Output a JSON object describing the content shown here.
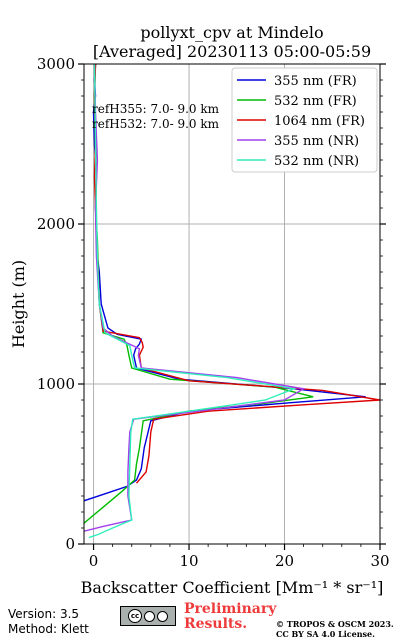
{
  "chart_data": {
    "type": "line",
    "title": [
      "pollyxt_cpv at Mindelo",
      "[Averaged] 20230113 05:00-05:59"
    ],
    "xlabel": "Backscatter Coefficient [Mm⁻¹ * sr⁻¹]",
    "ylabel": "Height (m)",
    "xlim": [
      -1,
      30
    ],
    "ylim": [
      0,
      3000
    ],
    "xticks": [
      0,
      10,
      20,
      30
    ],
    "yticks": [
      0,
      1000,
      2000,
      3000
    ],
    "grid": true,
    "legend_position": "top-right",
    "annotations": [
      "refH355:  7.0- 9.0 km",
      "refH532:  7.0- 9.0 km"
    ],
    "series": [
      {
        "name": "355 nm (FR)",
        "color": "#0000dd",
        "x": [
          -1.0,
          1.0,
          3.5,
          4.5,
          5.0,
          5.3,
          6.0,
          10,
          20,
          28.5,
          21,
          9,
          4.5,
          4.2,
          4.4,
          4.8,
          5.0,
          2.5,
          1.5,
          0.8,
          0.6,
          0.4,
          0.3,
          0.2,
          0.3,
          0.1,
          0.0,
          0.2,
          0.1,
          0.2
        ],
        "y": [
          270,
          310,
          360,
          400,
          470,
          600,
          770,
          830,
          880,
          920,
          970,
          1030,
          1100,
          1180,
          1220,
          1250,
          1280,
          1310,
          1350,
          1500,
          1700,
          1800,
          2000,
          2100,
          2300,
          2500,
          2700,
          2800,
          2900,
          3000
        ]
      },
      {
        "name": "532 nm (FR)",
        "color": "#00bb00",
        "x": [
          -1.0,
          1.0,
          3.0,
          4.3,
          4.5,
          4.8,
          5.2,
          10,
          18,
          23,
          19,
          8,
          4.0,
          3.7,
          3.5,
          3.2,
          1.0,
          0.6,
          0.5,
          0.4,
          0.2,
          0.3,
          0.2,
          0.1,
          0.2
        ],
        "y": [
          130,
          230,
          330,
          400,
          500,
          600,
          770,
          830,
          880,
          920,
          980,
          1030,
          1100,
          1180,
          1240,
          1280,
          1320,
          1500,
          1700,
          1900,
          2100,
          2300,
          2500,
          2800,
          3000
        ]
      },
      {
        "name": "1064 nm (FR)",
        "color": "#dd0000",
        "x": [
          4.5,
          5.5,
          5.8,
          6.0,
          6.3,
          12,
          22,
          30,
          24,
          10,
          5.0,
          4.8,
          5.2,
          5.1,
          4.8,
          1.0,
          0.6,
          0.5,
          0.3,
          0.2,
          0.1,
          0.2,
          0.1,
          0.2
        ],
        "y": [
          380,
          450,
          550,
          700,
          780,
          830,
          870,
          900,
          960,
          1020,
          1100,
          1180,
          1230,
          1260,
          1290,
          1330,
          1500,
          1700,
          1900,
          2100,
          2300,
          2500,
          2800,
          3000
        ]
      },
      {
        "name": "355 nm (NR)",
        "color": "#a040ee",
        "x": [
          -1.0,
          1.0,
          4.0,
          3.6,
          3.6,
          3.7,
          3.8,
          4.2,
          11,
          20,
          22,
          15,
          5.0,
          4.7,
          4.8,
          2.0,
          1.0,
          0.6,
          0.3,
          0.2,
          0.4,
          0.2,
          0.1
        ],
        "y": [
          80,
          110,
          150,
          300,
          450,
          600,
          700,
          780,
          830,
          900,
          970,
          1040,
          1100,
          1180,
          1220,
          1300,
          1350,
          1500,
          1800,
          2100,
          2400,
          2700,
          3000
        ]
      },
      {
        "name": "532 nm (NR)",
        "color": "#30eebb",
        "x": [
          -0.5,
          0.5,
          2.0,
          4.0,
          3.7,
          3.8,
          3.9,
          4.1,
          10,
          18,
          21,
          14,
          4.3,
          4.0,
          3.8,
          1.2,
          0.6,
          0.4,
          0.3,
          0.2,
          0.1
        ],
        "y": [
          40,
          60,
          100,
          150,
          300,
          500,
          700,
          780,
          830,
          900,
          970,
          1040,
          1100,
          1180,
          1240,
          1320,
          1500,
          1800,
          2100,
          2500,
          3000
        ]
      }
    ]
  },
  "footer": {
    "version": "Version: 3.5",
    "method": "Method: Klett",
    "cc_label": "cc",
    "preliminary": [
      "Preliminary",
      "Results."
    ],
    "copyright": [
      "© TROPOS & OSCM 2023.",
      "CC BY SA 4.0 License."
    ]
  }
}
